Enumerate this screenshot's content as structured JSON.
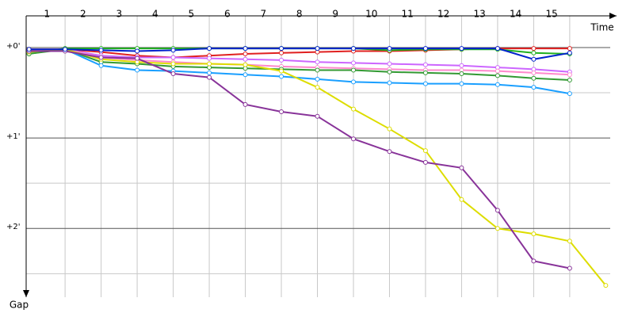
{
  "chart_data": {
    "type": "line",
    "x_label": "Time",
    "y_label": "Gap",
    "x": [
      0,
      1,
      2,
      3,
      4,
      5,
      6,
      7,
      8,
      9,
      10,
      11,
      12,
      13,
      14,
      15,
      16
    ],
    "xlim": [
      -0.08,
      16.3
    ],
    "xticks": [
      1,
      2,
      3,
      4,
      5,
      6,
      7,
      8,
      9,
      10,
      11,
      12,
      13,
      14,
      15
    ],
    "ylim": [
      -0.35,
      2.76
    ],
    "y_reversed": true,
    "yticks": [
      {
        "value": 0,
        "label": "+0'"
      },
      {
        "value": 1,
        "label": "+1'"
      },
      {
        "value": 2,
        "label": "+2'"
      }
    ],
    "minor_yticks": [
      0.5,
      1.5,
      2.5
    ],
    "grid": true,
    "series": [
      {
        "color": "#e02020",
        "values": [
          0.02,
          0.02,
          0.05,
          0.09,
          0.11,
          0.09,
          0.07,
          0.06,
          0.05,
          0.04,
          0.04,
          0.03,
          0.02,
          0.01,
          0.01,
          0.01,
          null
        ]
      },
      {
        "color": "#20b020",
        "values": [
          0.07,
          0.01,
          0.01,
          0.01,
          0.01,
          0.01,
          0.01,
          0.01,
          0.01,
          0.01,
          0.03,
          0.02,
          0.02,
          0.02,
          0.06,
          0.07,
          null
        ]
      },
      {
        "color": "#cc66ff",
        "values": [
          0.04,
          0.02,
          0.09,
          0.11,
          0.11,
          0.12,
          0.13,
          0.14,
          0.16,
          0.17,
          0.18,
          0.19,
          0.2,
          0.22,
          0.24,
          0.27,
          null
        ]
      },
      {
        "color": "#ff88cc",
        "values": [
          0.04,
          0.02,
          0.11,
          0.14,
          0.16,
          0.18,
          0.19,
          0.21,
          0.22,
          0.23,
          0.24,
          0.25,
          0.25,
          0.26,
          0.28,
          0.3,
          null
        ]
      },
      {
        "color": "#339933",
        "values": [
          0.07,
          0.02,
          0.16,
          0.18,
          0.21,
          0.22,
          0.23,
          0.24,
          0.25,
          0.25,
          0.27,
          0.28,
          0.29,
          0.31,
          0.34,
          0.36,
          null
        ]
      },
      {
        "color": "#1a9fff",
        "values": [
          0.05,
          0.02,
          0.2,
          0.25,
          0.26,
          0.28,
          0.3,
          0.32,
          0.35,
          0.38,
          0.39,
          0.4,
          0.4,
          0.41,
          0.44,
          0.51,
          null
        ]
      },
      {
        "color": "#dddd00",
        "values": [
          0.05,
          0.02,
          0.13,
          0.16,
          0.18,
          0.18,
          0.19,
          0.26,
          0.44,
          0.68,
          0.9,
          1.14,
          1.68,
          2.0,
          2.06,
          2.14,
          2.63
        ]
      },
      {
        "color": "#883399",
        "values": [
          0.04,
          0.04,
          0.11,
          0.12,
          0.29,
          0.33,
          0.63,
          0.71,
          0.76,
          1.01,
          1.15,
          1.27,
          1.33,
          1.8,
          2.36,
          2.44,
          null
        ]
      },
      {
        "color": "#0022cc",
        "values": [
          0.02,
          0.02,
          0.03,
          0.04,
          0.03,
          0.01,
          0.01,
          0.01,
          0.01,
          0.01,
          0.01,
          0.01,
          0.01,
          0.01,
          0.13,
          0.06,
          null
        ]
      }
    ]
  }
}
